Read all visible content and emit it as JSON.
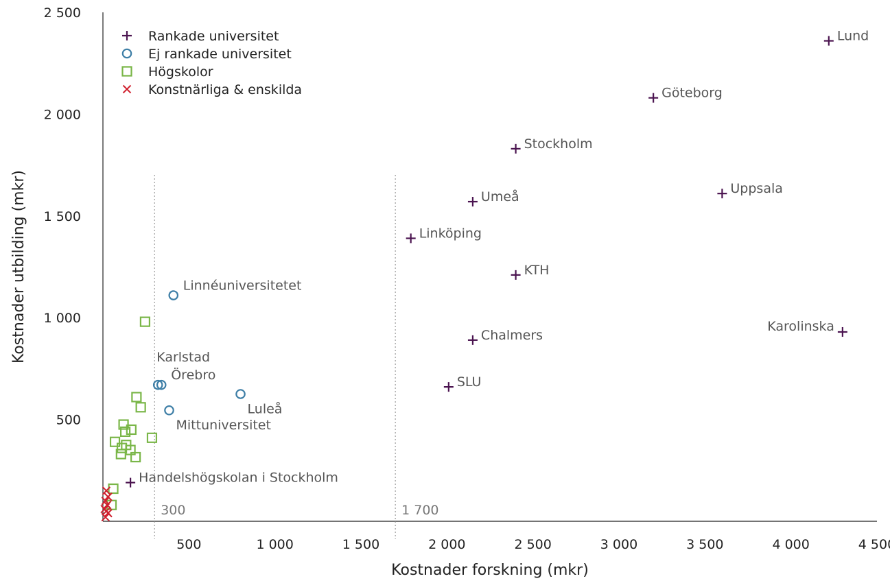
{
  "chart_data": {
    "type": "scatter",
    "xlabel": "Kostnader forskning (mkr)",
    "ylabel": "Kostnader utbilding (mkr)",
    "xlim": [
      0,
      4500
    ],
    "ylim": [
      0,
      2500
    ],
    "x_ticks": [
      {
        "value": 500,
        "label": "500"
      },
      {
        "value": 1000,
        "label": "1 000"
      },
      {
        "value": 1500,
        "label": "1 500"
      },
      {
        "value": 2000,
        "label": "2 000"
      },
      {
        "value": 2500,
        "label": "2 500"
      },
      {
        "value": 3000,
        "label": "3 000"
      },
      {
        "value": 3500,
        "label": "3 500"
      },
      {
        "value": 4000,
        "label": "4 000"
      },
      {
        "value": 4500,
        "label": "4 500"
      }
    ],
    "y_ticks": [
      {
        "value": 500,
        "label": "500"
      },
      {
        "value": 1000,
        "label": "1 000"
      },
      {
        "value": 1500,
        "label": "1 500"
      },
      {
        "value": 2000,
        "label": "2 000"
      },
      {
        "value": 2500,
        "label": "2 500"
      }
    ],
    "reference_lines": [
      {
        "x": 300,
        "label": "300"
      },
      {
        "x": 1700,
        "label": "1 700"
      }
    ],
    "grid": false,
    "legend_position": "top-left",
    "series": [
      {
        "name": "Rankade universitet",
        "marker": "plus",
        "color": "#4b1450",
        "points": [
          {
            "x": 4220,
            "y": 2360,
            "label": "Lund",
            "label_side": "right"
          },
          {
            "x": 3200,
            "y": 2080,
            "label": "Göteborg",
            "label_side": "right"
          },
          {
            "x": 2400,
            "y": 1830,
            "label": "Stockholm",
            "label_side": "right"
          },
          {
            "x": 3600,
            "y": 1610,
            "label": "Uppsala",
            "label_side": "right"
          },
          {
            "x": 2150,
            "y": 1570,
            "label": "Umeå",
            "label_side": "right"
          },
          {
            "x": 1790,
            "y": 1390,
            "label": "Linköping",
            "label_side": "right"
          },
          {
            "x": 2400,
            "y": 1210,
            "label": "KTH",
            "label_side": "right"
          },
          {
            "x": 4300,
            "y": 930,
            "label": "Karolinska",
            "label_side": "left"
          },
          {
            "x": 2150,
            "y": 890,
            "label": "Chalmers",
            "label_side": "right"
          },
          {
            "x": 2010,
            "y": 660,
            "label": "SLU",
            "label_side": "right"
          },
          {
            "x": 160,
            "y": 190,
            "label": "Handelshögskolan i Stockholm",
            "label_side": "right"
          }
        ]
      },
      {
        "name": "Ej rankade universitet",
        "marker": "circle",
        "color": "#3d7ea6",
        "points": [
          {
            "x": 410,
            "y": 1110,
            "label": "Linnéuniversitetet",
            "label_side": "upper-right"
          },
          {
            "x": 320,
            "y": 670,
            "label": "Karlstad",
            "label_side": "above"
          },
          {
            "x": 340,
            "y": 670,
            "label": "Örebro",
            "label_side": "upper-right"
          },
          {
            "x": 800,
            "y": 625,
            "label": "Luleå",
            "label_side": "lower-right"
          },
          {
            "x": 385,
            "y": 545,
            "label": "Mittuniversitet",
            "label_side": "lower-right"
          }
        ]
      },
      {
        "name": "Högskolor",
        "marker": "square",
        "color": "#7ab648",
        "points": [
          {
            "x": 245,
            "y": 980
          },
          {
            "x": 195,
            "y": 610
          },
          {
            "x": 220,
            "y": 560
          },
          {
            "x": 120,
            "y": 475
          },
          {
            "x": 165,
            "y": 450
          },
          {
            "x": 130,
            "y": 440
          },
          {
            "x": 285,
            "y": 410
          },
          {
            "x": 70,
            "y": 390
          },
          {
            "x": 135,
            "y": 375
          },
          {
            "x": 110,
            "y": 360
          },
          {
            "x": 160,
            "y": 350
          },
          {
            "x": 105,
            "y": 330
          },
          {
            "x": 190,
            "y": 315
          },
          {
            "x": 60,
            "y": 160
          },
          {
            "x": 50,
            "y": 80
          }
        ]
      },
      {
        "name": "Konstnärliga & enskilda",
        "marker": "x",
        "color": "#d0202e",
        "points": [
          {
            "x": 20,
            "y": 150
          },
          {
            "x": 30,
            "y": 120
          },
          {
            "x": 15,
            "y": 100
          },
          {
            "x": 25,
            "y": 80
          },
          {
            "x": 10,
            "y": 60
          },
          {
            "x": 20,
            "y": 50
          },
          {
            "x": 30,
            "y": 40
          },
          {
            "x": 15,
            "y": 20
          }
        ]
      }
    ]
  }
}
